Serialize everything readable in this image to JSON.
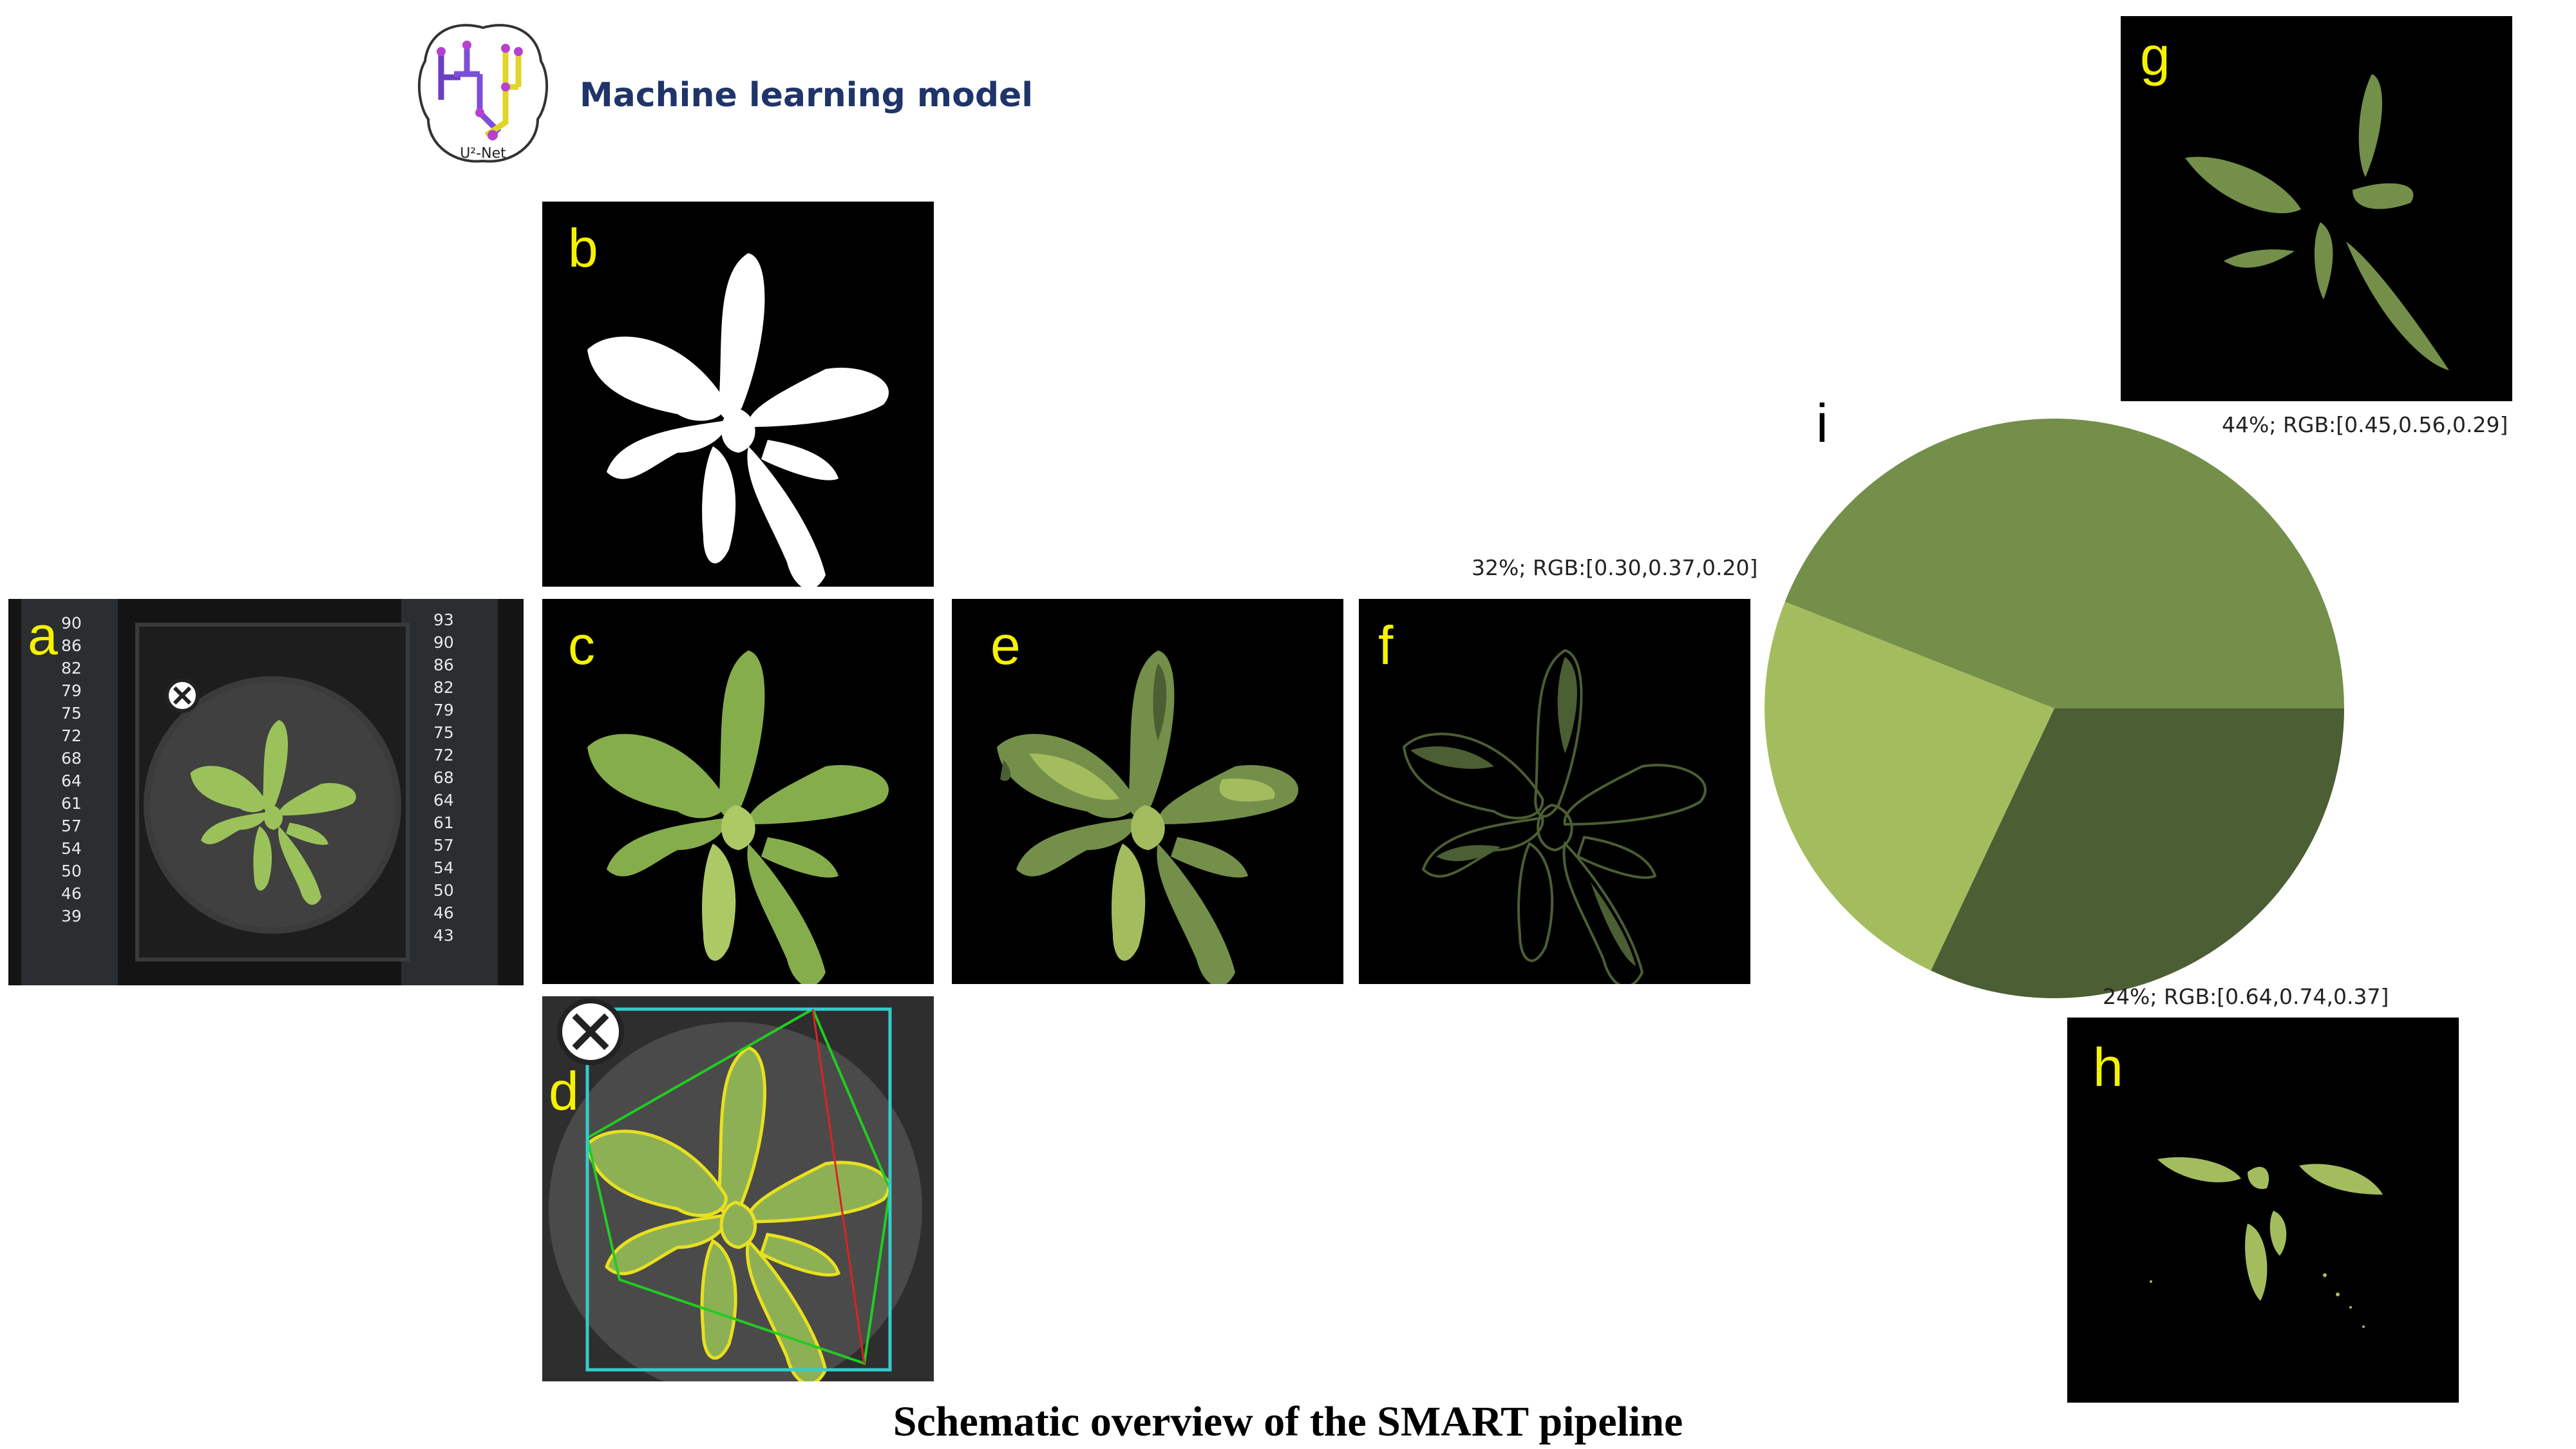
{
  "header": {
    "model_label": "Machine learning model",
    "logo_text": "U²-Net"
  },
  "panels": {
    "a": "a",
    "b": "b",
    "c": "c",
    "d": "d",
    "e": "e",
    "f": "f",
    "g": "g",
    "h": "h",
    "i": "i"
  },
  "ruler_left": [
    "90",
    "86",
    "82",
    "79",
    "75",
    "72",
    "68",
    "64",
    "61",
    "57",
    "54",
    "50",
    "46",
    "39"
  ],
  "ruler_right": [
    "93",
    "90",
    "86",
    "82",
    "79",
    "75",
    "72",
    "68",
    "64",
    "61",
    "57",
    "54",
    "50",
    "46",
    "43"
  ],
  "chart_data": {
    "type": "pie",
    "slices": [
      {
        "label": "44%; RGB:[0.45,0.56,0.29]",
        "value": 44,
        "color": "#738f4a"
      },
      {
        "label": "24%; RGB:[0.64,0.74,0.37]",
        "value": 24,
        "color": "#a3bd5e"
      },
      {
        "label": "32%; RGB:[0.30,0.37,0.20]",
        "value": 32,
        "color": "#4c5e33"
      }
    ]
  },
  "colors": {
    "panel_label": "#f5f200",
    "pie_label": "#000000",
    "title": "#000000",
    "model_label": "#1f3468",
    "outline_yellow": "#e8e020",
    "hull_green": "#22cc22",
    "box_cyan": "#33cccc"
  },
  "caption": "Schematic overview of the SMART pipeline"
}
